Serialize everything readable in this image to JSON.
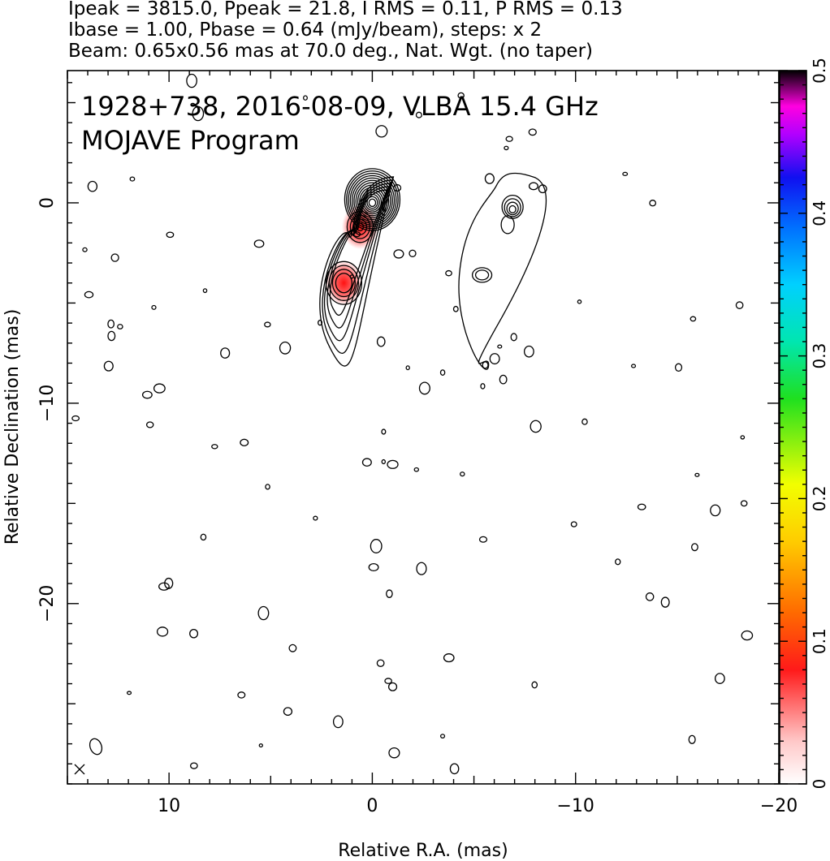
{
  "header": {
    "line1": "Ipeak = 3815.0, Ppeak = 21.8, I RMS = 0.11, P RMS = 0.13",
    "line2": "Ibase = 1.00, Pbase = 0.64 (mJy/beam), steps: x 2",
    "line3": "Beam: 0.65x0.56 mas at 70.0 deg., Nat. Wgt. (no taper)"
  },
  "chart_data": {
    "type": "heatmap",
    "title": "1928+738, 2016-08-09, VLBA 15.4 GHz",
    "subtitle": "MOJAVE Program",
    "xlabel": "Relative R.A. (mas)",
    "ylabel": "Relative Declination (mas)",
    "xlim": [
      15,
      -20
    ],
    "ylim": [
      -29,
      6.6
    ],
    "x_ticks": [
      10,
      0,
      -10,
      -20
    ],
    "x_tick_labels": [
      "10",
      "0",
      "−10",
      "−20"
    ],
    "y_ticks": [
      0,
      -10,
      -20
    ],
    "y_tick_labels": [
      "0",
      "−10",
      "−20"
    ],
    "colorbar": {
      "min": 0,
      "max": 0.5,
      "ticks": [
        0,
        0.1,
        0.2,
        0.3,
        0.4,
        0.5
      ],
      "tick_labels": [
        "0",
        "0.1",
        "0.2",
        "0.3",
        "0.4",
        "0.5"
      ]
    },
    "core": {
      "x": 0,
      "y": 0
    },
    "jet_features": [
      {
        "x": 0.6,
        "y": -1.2,
        "polarized": true
      },
      {
        "x": 1.4,
        "y": -4.0,
        "polarized": true
      }
    ],
    "secondary_structure": [
      {
        "x": -6.9,
        "y": -0.2
      },
      {
        "x": -5.4,
        "y": -3.6
      }
    ]
  }
}
